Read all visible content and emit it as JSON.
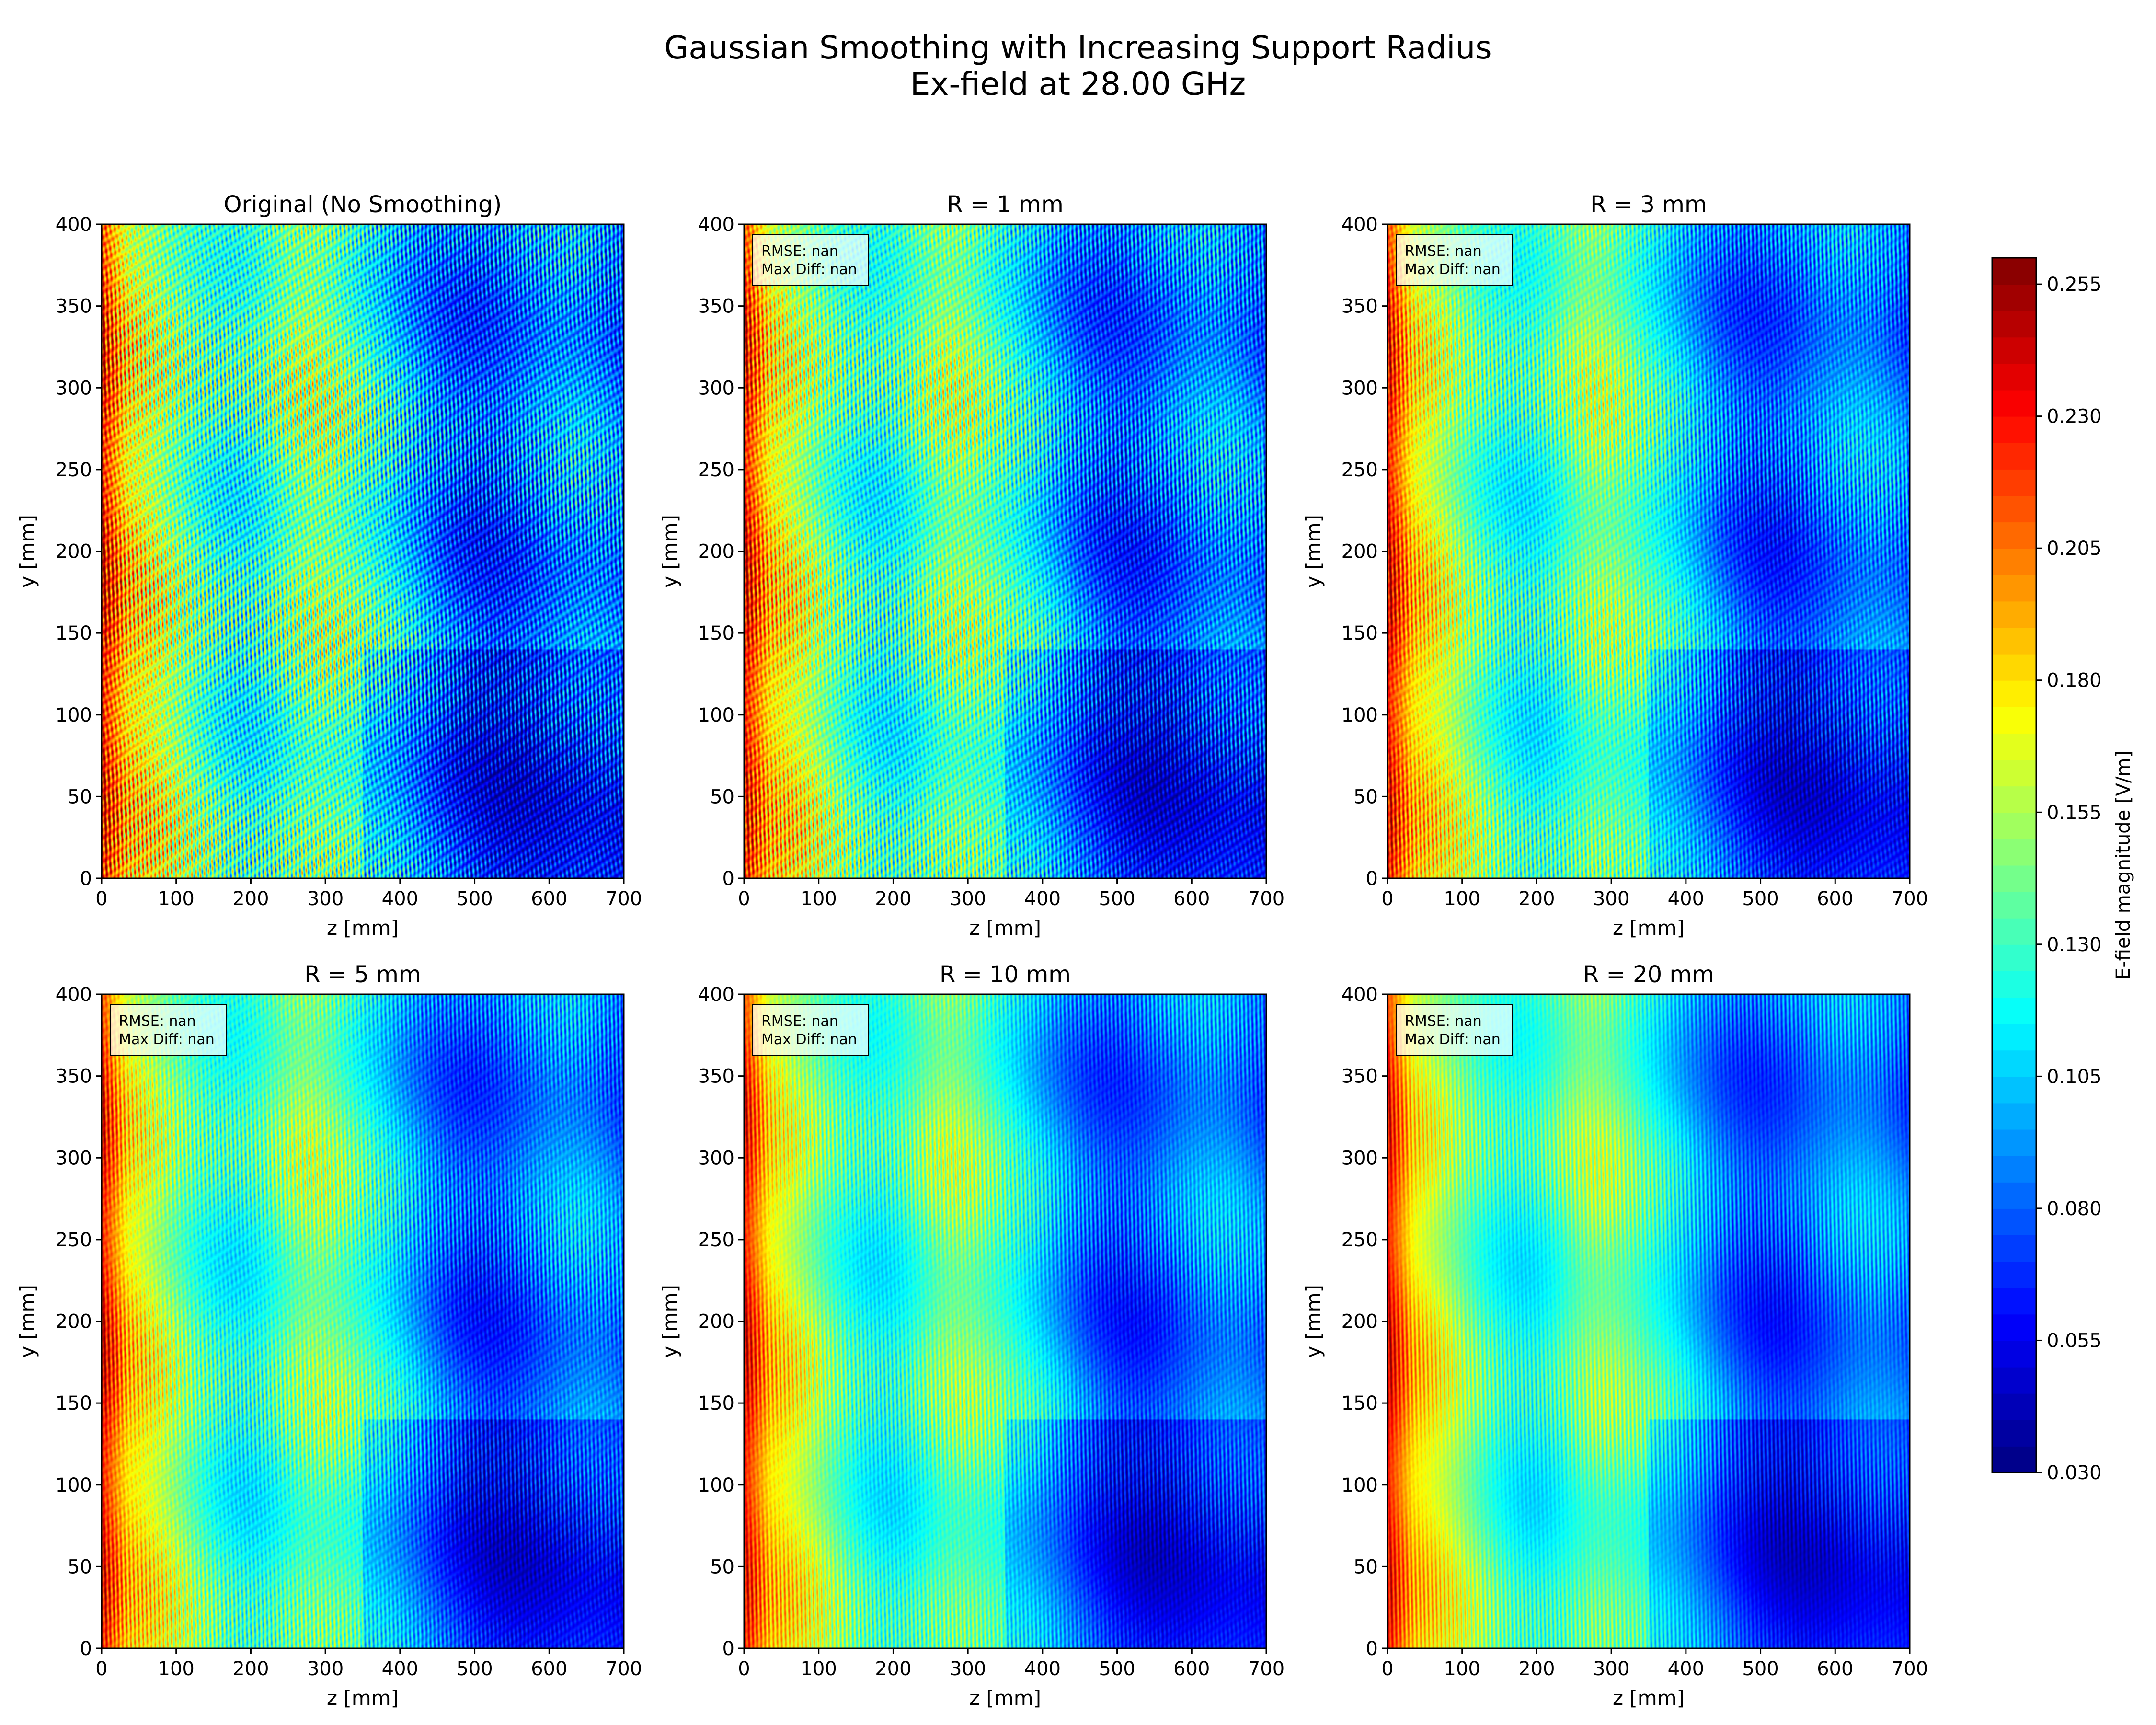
{
  "figure": {
    "title_line1": "Gaussian Smoothing with Increasing Support Radius",
    "title_line2": "Ex-field at 28.00 GHz"
  },
  "chart_data": {
    "type": "heatmap",
    "colormap": "jet",
    "xlabel": "z [mm]",
    "ylabel": "y [mm]",
    "xlim": [
      0,
      700
    ],
    "ylim": [
      0,
      400
    ],
    "xticks": [
      0,
      100,
      200,
      300,
      400,
      500,
      600,
      700
    ],
    "yticks": [
      0,
      50,
      100,
      150,
      200,
      250,
      300,
      350,
      400
    ],
    "colorbar": {
      "label": "E-field magnitude [V/m]",
      "range": [
        0.03,
        0.26
      ],
      "ticks": [
        "0.030",
        "0.055",
        "0.080",
        "0.105",
        "0.130",
        "0.155",
        "0.180",
        "0.205",
        "0.230",
        "0.255"
      ]
    },
    "panels": [
      {
        "title": "Original (No Smoothing)",
        "radius_mm": 0,
        "stats": null
      },
      {
        "title": "R = 1 mm",
        "radius_mm": 1,
        "stats": [
          "RMSE: nan",
          "Max Diff: nan"
        ]
      },
      {
        "title": "R = 3 mm",
        "radius_mm": 3,
        "stats": [
          "RMSE: nan",
          "Max Diff: nan"
        ]
      },
      {
        "title": "R = 5 mm",
        "radius_mm": 5,
        "stats": [
          "RMSE: nan",
          "Max Diff: nan"
        ]
      },
      {
        "title": "R = 10 mm",
        "radius_mm": 10,
        "stats": [
          "RMSE: nan",
          "Max Diff: nan"
        ]
      },
      {
        "title": "R = 20 mm",
        "radius_mm": 20,
        "stats": [
          "RMSE: nan",
          "Max Diff: nan"
        ]
      }
    ]
  }
}
